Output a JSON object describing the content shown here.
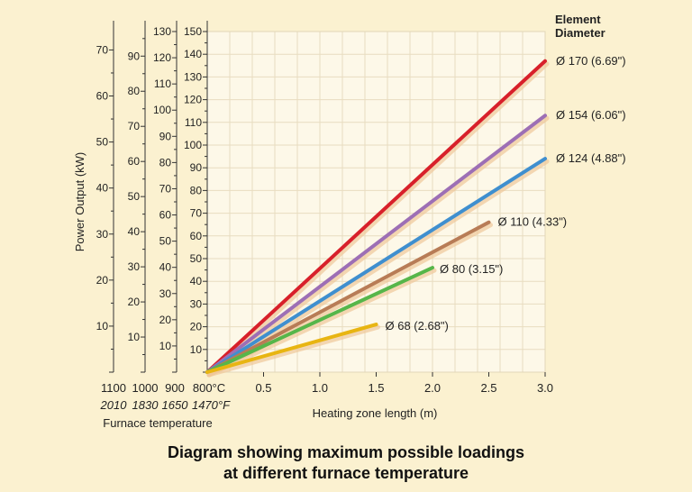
{
  "chart_data": {
    "type": "line",
    "title_lines": [
      "Diagram showing maximum possible loadings",
      "at different furnace temperature"
    ],
    "xlabel": "Heating zone length (m)",
    "x_ticks": [
      "0.5",
      "1.0",
      "1.5",
      "2.0",
      "2.5",
      "3.0"
    ],
    "xlim": [
      0,
      3.0
    ],
    "ylabel": "Power Output (kW)",
    "legend_title": "Element\nDiameter",
    "grid": true,
    "temperature_axes": [
      {
        "label_c": "1100",
        "label_f": "2010",
        "max": 74,
        "ticks": [
          "10",
          "20",
          "30",
          "40",
          "50",
          "60",
          "70"
        ]
      },
      {
        "label_c": "1000",
        "label_f": "1830",
        "max": 97,
        "ticks": [
          "10",
          "20",
          "30",
          "40",
          "50",
          "60",
          "70",
          "80",
          "90"
        ]
      },
      {
        "label_c": "900",
        "label_f": "1650",
        "max": 130,
        "ticks": [
          "10",
          "20",
          "30",
          "40",
          "50",
          "60",
          "70",
          "80",
          "90",
          "100",
          "110",
          "120",
          "130"
        ]
      },
      {
        "label_c": "800°C",
        "label_f": "1470°F",
        "max": 150,
        "ticks": [
          "10",
          "20",
          "30",
          "40",
          "50",
          "60",
          "70",
          "80",
          "90",
          "100",
          "110",
          "120",
          "130",
          "140",
          "150"
        ]
      }
    ],
    "temperature_axis_title": "Furnace temperature",
    "series": [
      {
        "name": "Ø 170 (6.69\")",
        "color": "#d8202a",
        "x": [
          0,
          3.0
        ],
        "y": [
          0,
          137
        ]
      },
      {
        "name": "Ø 154 (6.06\")",
        "color": "#9d6fb5",
        "x": [
          0,
          3.0
        ],
        "y": [
          0,
          113
        ]
      },
      {
        "name": "Ø 124 (4.88\")",
        "color": "#3f8fcf",
        "x": [
          0,
          3.0
        ],
        "y": [
          0,
          94
        ]
      },
      {
        "name": "Ø 110 (4.33\")",
        "color": "#b87c56",
        "x": [
          0,
          2.5
        ],
        "y": [
          0,
          66
        ]
      },
      {
        "name": "Ø 80 (3.15\")",
        "color": "#56b64a",
        "x": [
          0,
          2.0
        ],
        "y": [
          0,
          46
        ]
      },
      {
        "name": "Ø 68 (2.68\")",
        "color": "#e8b512",
        "x": [
          0,
          1.5
        ],
        "y": [
          0,
          21
        ]
      }
    ]
  }
}
